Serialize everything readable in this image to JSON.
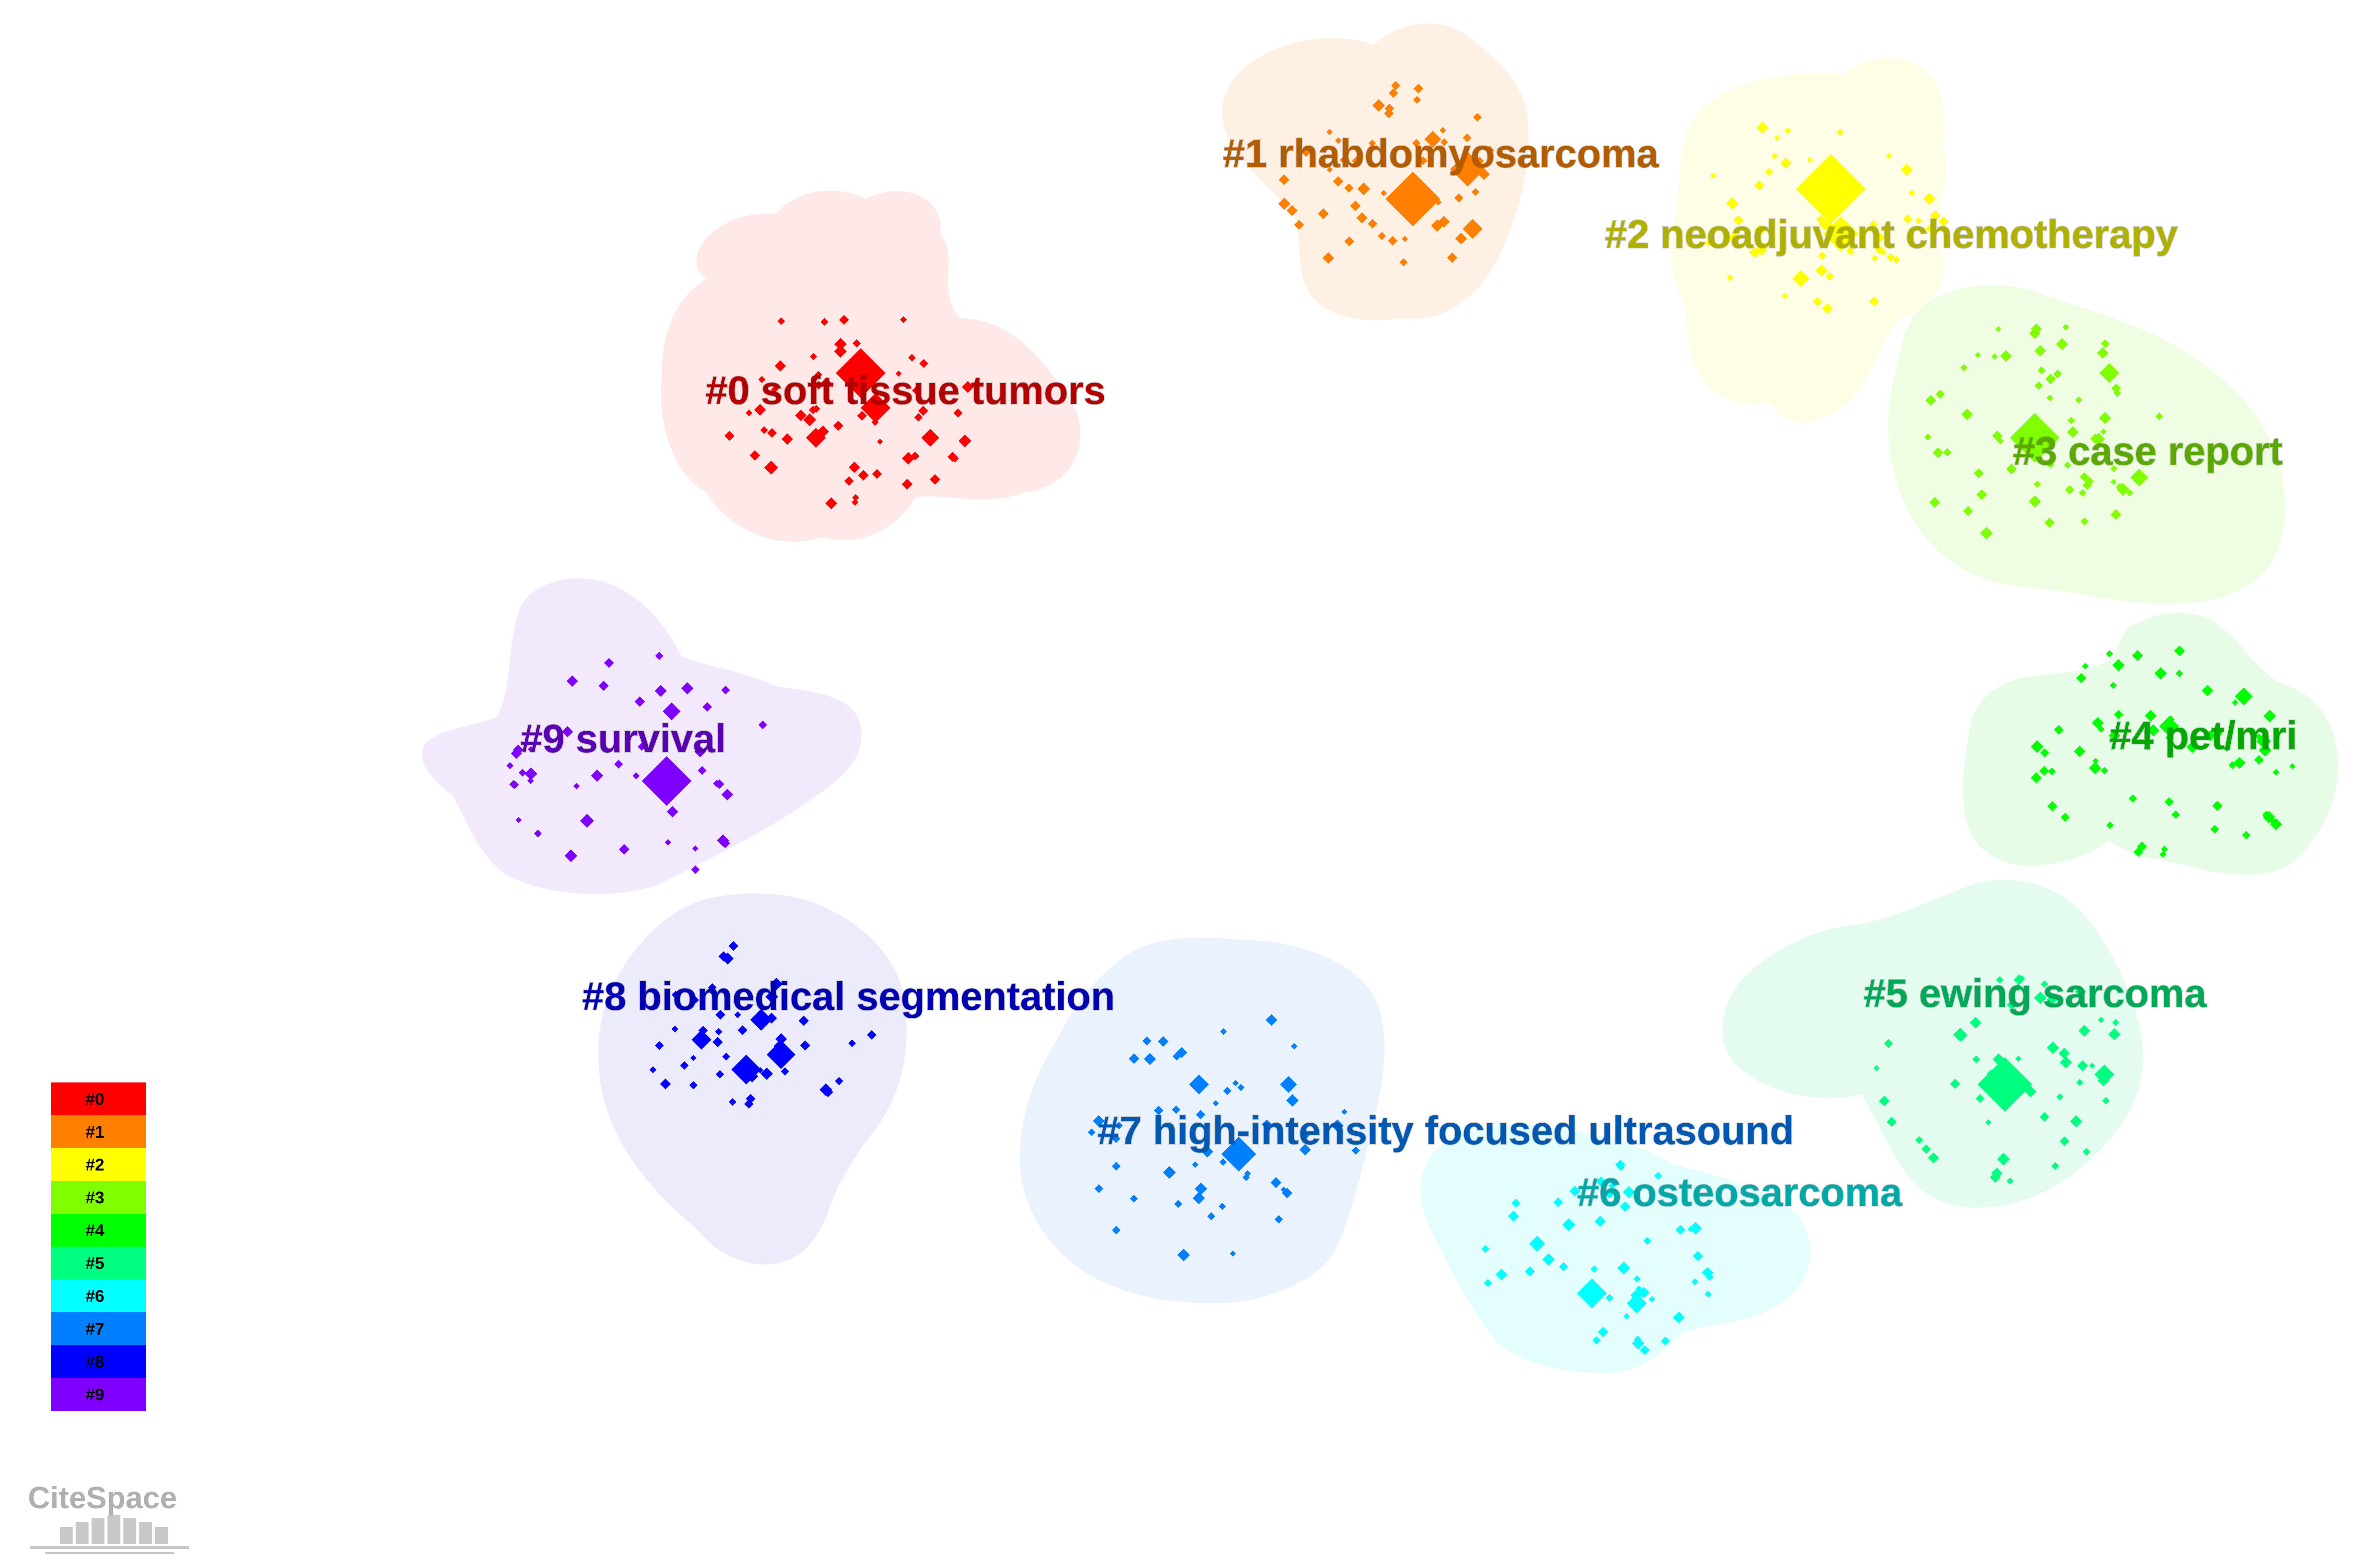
{
  "clusters": [
    {
      "id": "c0",
      "label": "#0 soft tissue tumors",
      "node_color": "#ff0000",
      "label_color": "#b30000",
      "hull_color": "#ffe8e8"
    },
    {
      "id": "c1",
      "label": "#1 rhabdomyosarcoma",
      "node_color": "#ff7f00",
      "label_color": "#b35c00",
      "hull_color": "#fff0e4"
    },
    {
      "id": "c2",
      "label": "#2 neoadjuvant chemotherapy",
      "node_color": "#ffff00",
      "label_color": "#b0b000",
      "hull_color": "#fefee6"
    },
    {
      "id": "c3",
      "label": "#3 case report",
      "node_color": "#80ff00",
      "label_color": "#5aa800",
      "hull_color": "#effde3"
    },
    {
      "id": "c4",
      "label": "#4 pet/mri",
      "node_color": "#00ff00",
      "label_color": "#00a800",
      "hull_color": "#e6fce6"
    },
    {
      "id": "c5",
      "label": "#5 ewing sarcoma",
      "node_color": "#00ff80",
      "label_color": "#00a858",
      "hull_color": "#e4fcef"
    },
    {
      "id": "c6",
      "label": "#6 osteosarcoma",
      "node_color": "#00ffff",
      "label_color": "#00a8a8",
      "hull_color": "#e4fdfd"
    },
    {
      "id": "c7",
      "label": "#7 high-intensity focused ultrasound",
      "node_color": "#007fff",
      "label_color": "#0058b3",
      "hull_color": "#e9f2fd"
    },
    {
      "id": "c8",
      "label": "#8 biomedical segmentation",
      "node_color": "#0000ff",
      "label_color": "#0000b3",
      "hull_color": "#ebebfb"
    },
    {
      "id": "c9",
      "label": "#9 survival",
      "node_color": "#7f00ff",
      "label_color": "#5a00b3",
      "hull_color": "#f2eafc"
    }
  ],
  "legend": {
    "items": [
      "#0",
      "#1",
      "#2",
      "#3",
      "#4",
      "#5",
      "#6",
      "#7",
      "#8",
      "#9"
    ]
  },
  "logo": {
    "text": "CiteSpace"
  }
}
